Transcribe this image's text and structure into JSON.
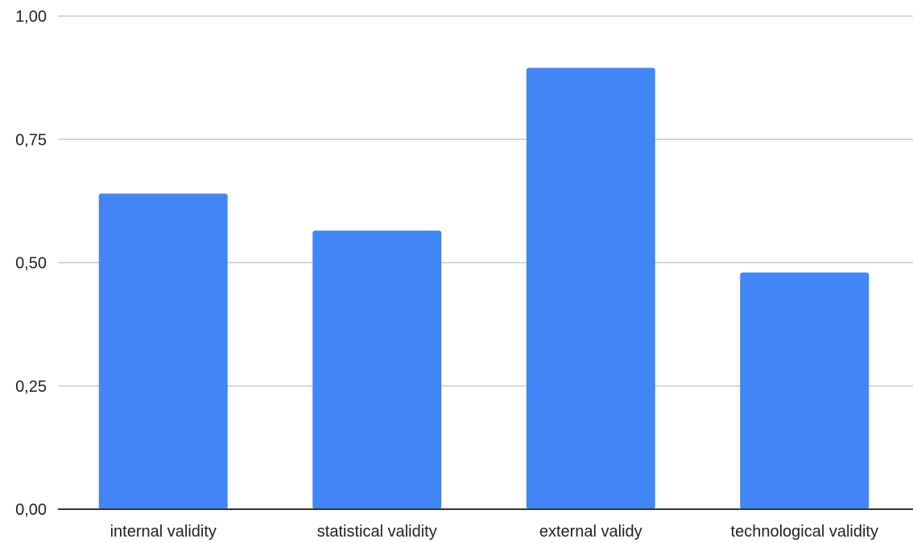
{
  "chart_data": {
    "type": "bar",
    "title": "",
    "xlabel": "",
    "ylabel": "",
    "categories": [
      "internal validity",
      "statistical validity",
      "external validy",
      "technological validity"
    ],
    "values": [
      0.64,
      0.565,
      0.895,
      0.48
    ],
    "ylim": [
      0,
      1
    ],
    "yticks": [
      0,
      0.25,
      0.5,
      0.75,
      1
    ],
    "ytick_labels": [
      "0,00",
      "0,25",
      "0,50",
      "0,75",
      "1,00"
    ],
    "grid": true,
    "legend": "none",
    "colors": {
      "bar": "#4285f4",
      "grid": "#cccccc",
      "axis": "#333333"
    }
  }
}
